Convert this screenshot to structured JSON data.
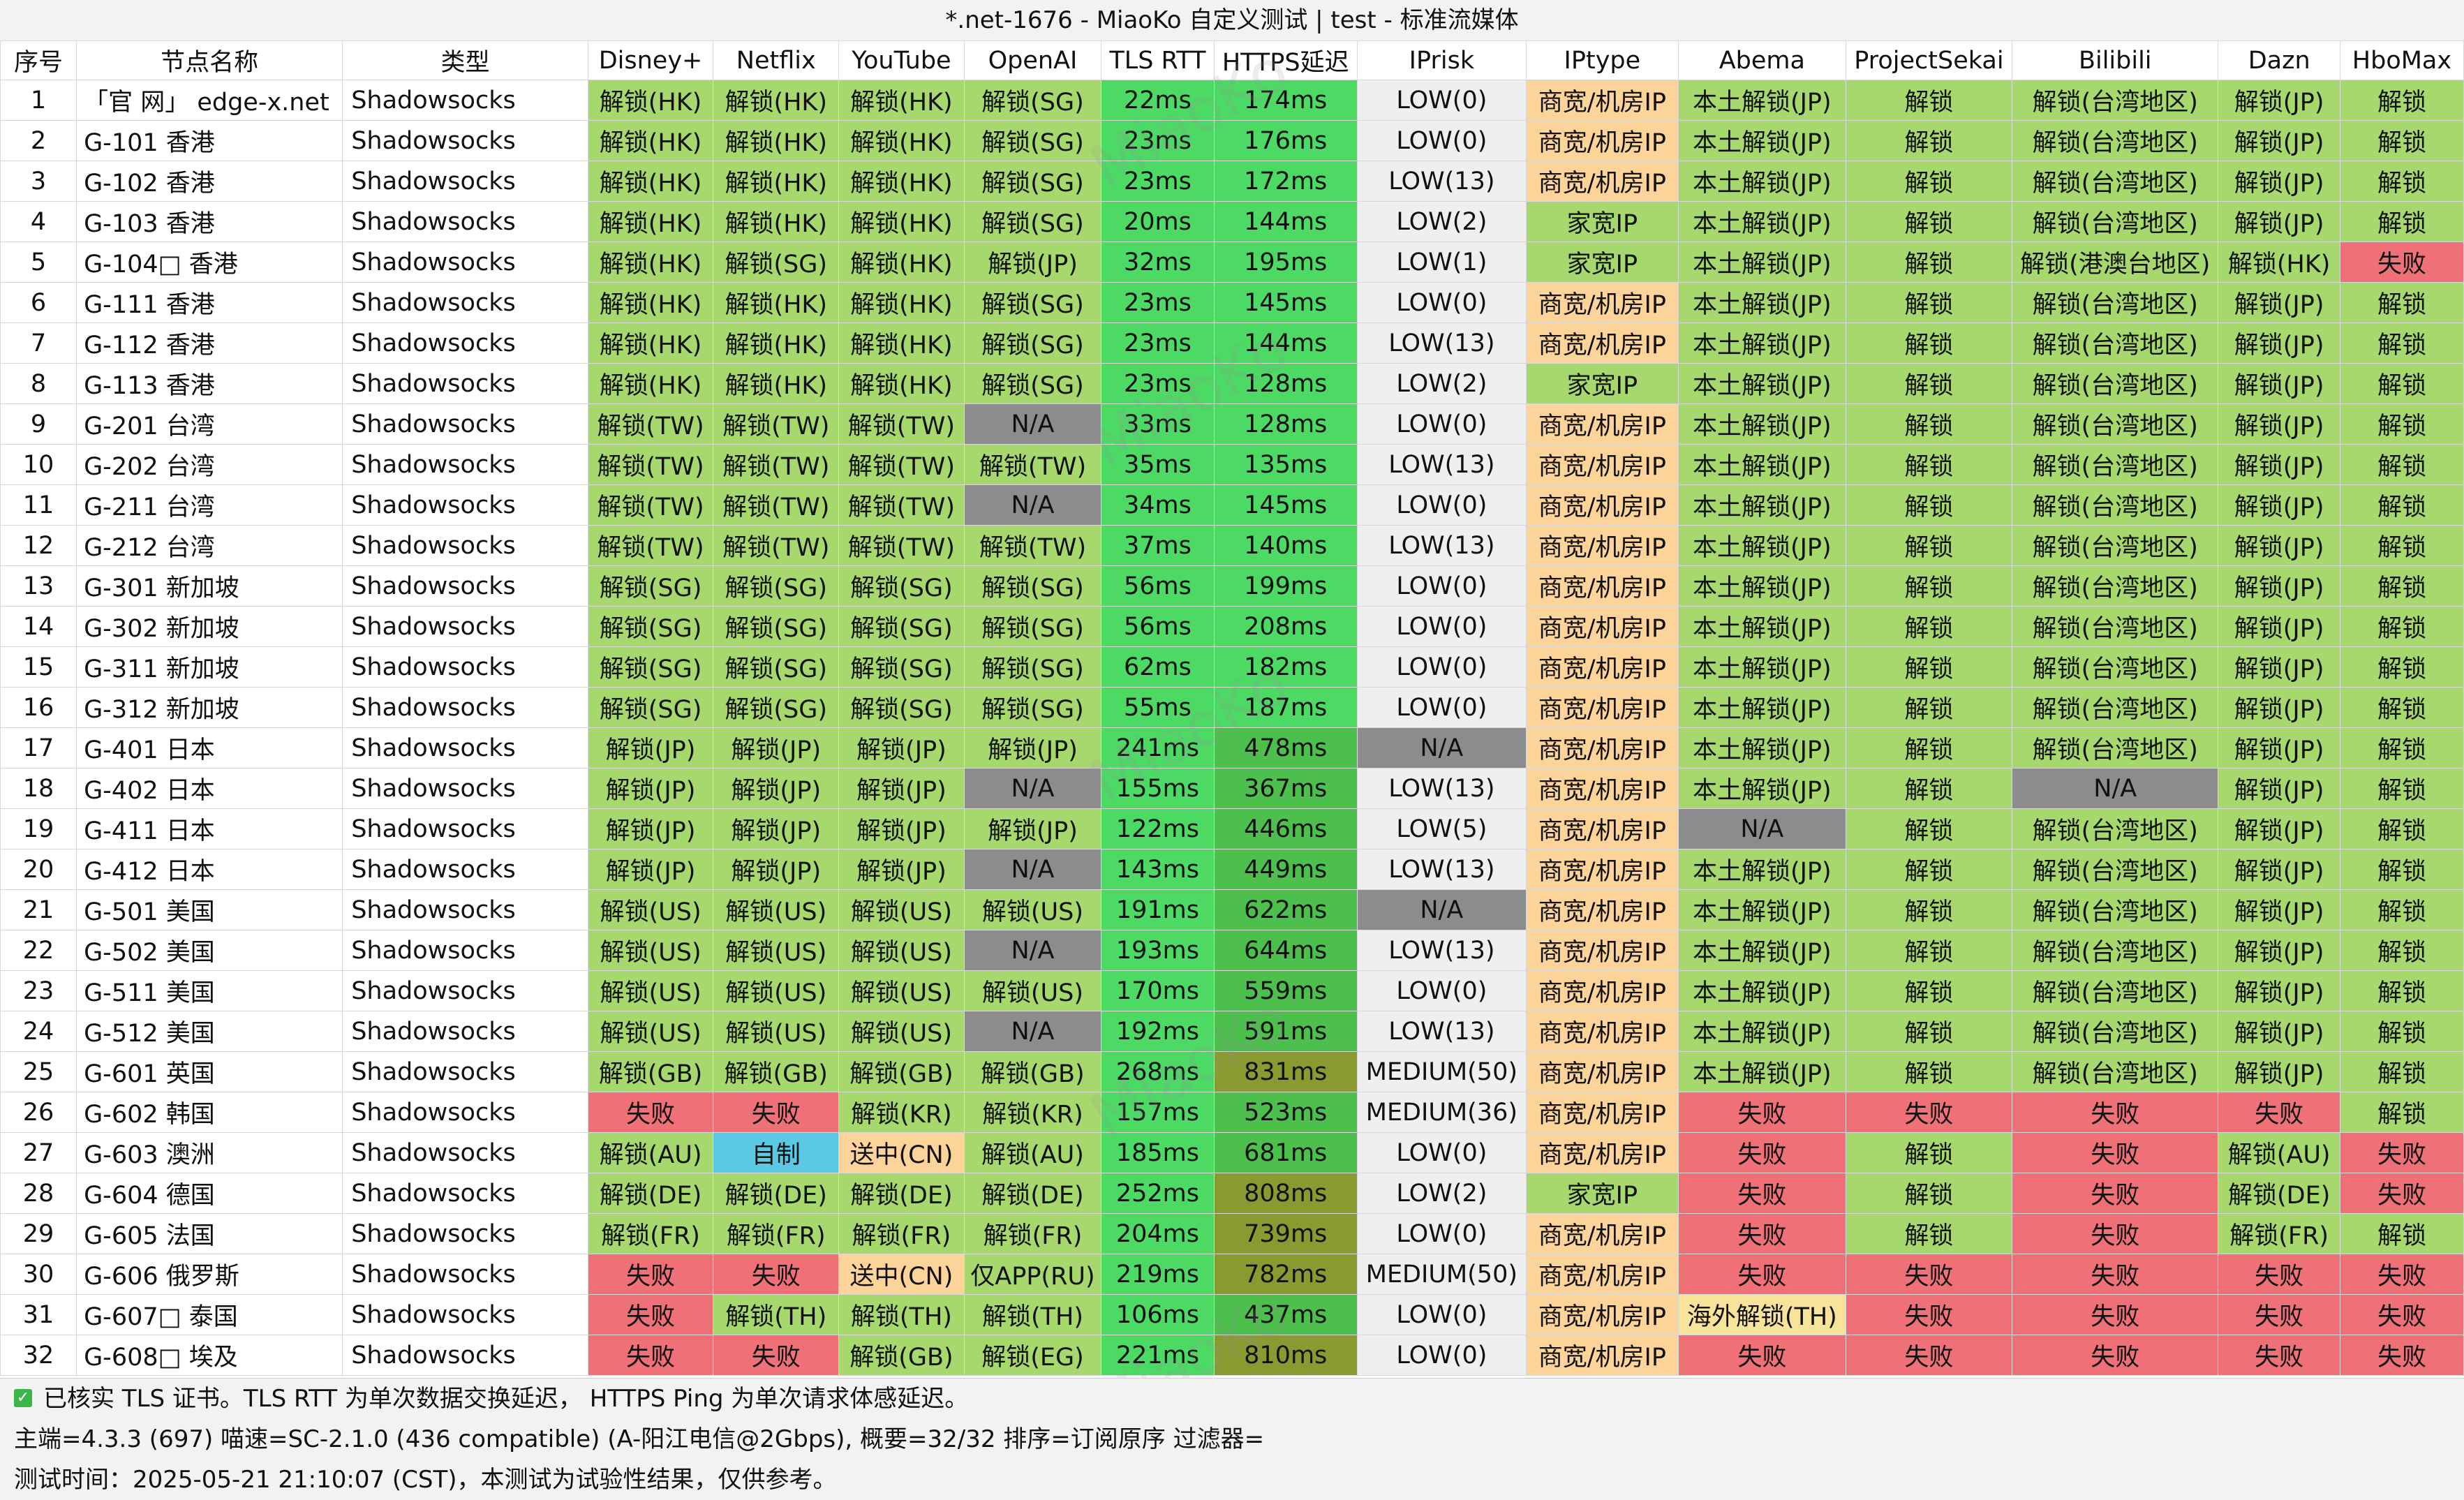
{
  "window_title": "*.net-1676 - MiaoKo 自定义测试 | test - 标准流媒体",
  "watermark": "MiaoKo",
  "colors": {
    "green": "#a6d86e",
    "bright_green": "#4cd964",
    "mid_green": "#4cbf4c",
    "olive": "#8a9a30",
    "gray_na": "#8c8c8c",
    "orange": "#fcd49a",
    "red": "#f07078",
    "cyan": "#5bc8e4",
    "lightgray": "#efefef",
    "white": "#ffffff",
    "light_yellow": "#f8e39a"
  },
  "columns": [
    "序号",
    "节点名称",
    "类型",
    "Disney+",
    "Netflix",
    "YouTube",
    "OpenAI",
    "TLS RTT",
    "HTTPS延迟",
    "IPrisk",
    "IPtype",
    "Abema",
    "ProjectSekai",
    "Bilibili",
    "Dazn",
    "HboMax"
  ],
  "rows": [
    {
      "idx": "1",
      "name": "「官 网」 edge-x.net",
      "type": "Shadowsocks",
      "disney": "解锁(HK)",
      "netflix": "解锁(HK)",
      "youtube": "解锁(HK)",
      "openai": "解锁(SG)",
      "tls": "22ms",
      "https": "174ms",
      "iprisk": "LOW(0)",
      "iptype": "商宽/机房IP",
      "abema": "本土解锁(JP)",
      "sekai": "解锁",
      "bilibili": "解锁(台湾地区)",
      "dazn": "解锁(JP)",
      "hbo": "解锁"
    },
    {
      "idx": "2",
      "name": "G-101 香港",
      "type": "Shadowsocks",
      "disney": "解锁(HK)",
      "netflix": "解锁(HK)",
      "youtube": "解锁(HK)",
      "openai": "解锁(SG)",
      "tls": "23ms",
      "https": "176ms",
      "iprisk": "LOW(0)",
      "iptype": "商宽/机房IP",
      "abema": "本土解锁(JP)",
      "sekai": "解锁",
      "bilibili": "解锁(台湾地区)",
      "dazn": "解锁(JP)",
      "hbo": "解锁"
    },
    {
      "idx": "3",
      "name": "G-102 香港",
      "type": "Shadowsocks",
      "disney": "解锁(HK)",
      "netflix": "解锁(HK)",
      "youtube": "解锁(HK)",
      "openai": "解锁(SG)",
      "tls": "23ms",
      "https": "172ms",
      "iprisk": "LOW(13)",
      "iptype": "商宽/机房IP",
      "abema": "本土解锁(JP)",
      "sekai": "解锁",
      "bilibili": "解锁(台湾地区)",
      "dazn": "解锁(JP)",
      "hbo": "解锁"
    },
    {
      "idx": "4",
      "name": "G-103 香港",
      "type": "Shadowsocks",
      "disney": "解锁(HK)",
      "netflix": "解锁(HK)",
      "youtube": "解锁(HK)",
      "openai": "解锁(SG)",
      "tls": "20ms",
      "https": "144ms",
      "iprisk": "LOW(2)",
      "iptype": "家宽IP",
      "abema": "本土解锁(JP)",
      "sekai": "解锁",
      "bilibili": "解锁(台湾地区)",
      "dazn": "解锁(JP)",
      "hbo": "解锁"
    },
    {
      "idx": "5",
      "name": "G-104□ 香港",
      "type": "Shadowsocks",
      "disney": "解锁(HK)",
      "netflix": "解锁(SG)",
      "youtube": "解锁(HK)",
      "openai": "解锁(JP)",
      "tls": "32ms",
      "https": "195ms",
      "iprisk": "LOW(1)",
      "iptype": "家宽IP",
      "abema": "本土解锁(JP)",
      "sekai": "解锁",
      "bilibili": "解锁(港澳台地区)",
      "dazn": "解锁(HK)",
      "hbo": "失败"
    },
    {
      "idx": "6",
      "name": "G-111 香港",
      "type": "Shadowsocks",
      "disney": "解锁(HK)",
      "netflix": "解锁(HK)",
      "youtube": "解锁(HK)",
      "openai": "解锁(SG)",
      "tls": "23ms",
      "https": "145ms",
      "iprisk": "LOW(0)",
      "iptype": "商宽/机房IP",
      "abema": "本土解锁(JP)",
      "sekai": "解锁",
      "bilibili": "解锁(台湾地区)",
      "dazn": "解锁(JP)",
      "hbo": "解锁"
    },
    {
      "idx": "7",
      "name": "G-112 香港",
      "type": "Shadowsocks",
      "disney": "解锁(HK)",
      "netflix": "解锁(HK)",
      "youtube": "解锁(HK)",
      "openai": "解锁(SG)",
      "tls": "23ms",
      "https": "144ms",
      "iprisk": "LOW(13)",
      "iptype": "商宽/机房IP",
      "abema": "本土解锁(JP)",
      "sekai": "解锁",
      "bilibili": "解锁(台湾地区)",
      "dazn": "解锁(JP)",
      "hbo": "解锁"
    },
    {
      "idx": "8",
      "name": "G-113 香港",
      "type": "Shadowsocks",
      "disney": "解锁(HK)",
      "netflix": "解锁(HK)",
      "youtube": "解锁(HK)",
      "openai": "解锁(SG)",
      "tls": "23ms",
      "https": "128ms",
      "iprisk": "LOW(2)",
      "iptype": "家宽IP",
      "abema": "本土解锁(JP)",
      "sekai": "解锁",
      "bilibili": "解锁(台湾地区)",
      "dazn": "解锁(JP)",
      "hbo": "解锁"
    },
    {
      "idx": "9",
      "name": "G-201 台湾",
      "type": "Shadowsocks",
      "disney": "解锁(TW)",
      "netflix": "解锁(TW)",
      "youtube": "解锁(TW)",
      "openai": "N/A",
      "tls": "33ms",
      "https": "128ms",
      "iprisk": "LOW(0)",
      "iptype": "商宽/机房IP",
      "abema": "本土解锁(JP)",
      "sekai": "解锁",
      "bilibili": "解锁(台湾地区)",
      "dazn": "解锁(JP)",
      "hbo": "解锁"
    },
    {
      "idx": "10",
      "name": "G-202 台湾",
      "type": "Shadowsocks",
      "disney": "解锁(TW)",
      "netflix": "解锁(TW)",
      "youtube": "解锁(TW)",
      "openai": "解锁(TW)",
      "tls": "35ms",
      "https": "135ms",
      "iprisk": "LOW(13)",
      "iptype": "商宽/机房IP",
      "abema": "本土解锁(JP)",
      "sekai": "解锁",
      "bilibili": "解锁(台湾地区)",
      "dazn": "解锁(JP)",
      "hbo": "解锁"
    },
    {
      "idx": "11",
      "name": "G-211 台湾",
      "type": "Shadowsocks",
      "disney": "解锁(TW)",
      "netflix": "解锁(TW)",
      "youtube": "解锁(TW)",
      "openai": "N/A",
      "tls": "34ms",
      "https": "145ms",
      "iprisk": "LOW(0)",
      "iptype": "商宽/机房IP",
      "abema": "本土解锁(JP)",
      "sekai": "解锁",
      "bilibili": "解锁(台湾地区)",
      "dazn": "解锁(JP)",
      "hbo": "解锁"
    },
    {
      "idx": "12",
      "name": "G-212 台湾",
      "type": "Shadowsocks",
      "disney": "解锁(TW)",
      "netflix": "解锁(TW)",
      "youtube": "解锁(TW)",
      "openai": "解锁(TW)",
      "tls": "37ms",
      "https": "140ms",
      "iprisk": "LOW(13)",
      "iptype": "商宽/机房IP",
      "abema": "本土解锁(JP)",
      "sekai": "解锁",
      "bilibili": "解锁(台湾地区)",
      "dazn": "解锁(JP)",
      "hbo": "解锁"
    },
    {
      "idx": "13",
      "name": "G-301 新加坡",
      "type": "Shadowsocks",
      "disney": "解锁(SG)",
      "netflix": "解锁(SG)",
      "youtube": "解锁(SG)",
      "openai": "解锁(SG)",
      "tls": "56ms",
      "https": "199ms",
      "iprisk": "LOW(0)",
      "iptype": "商宽/机房IP",
      "abema": "本土解锁(JP)",
      "sekai": "解锁",
      "bilibili": "解锁(台湾地区)",
      "dazn": "解锁(JP)",
      "hbo": "解锁"
    },
    {
      "idx": "14",
      "name": "G-302 新加坡",
      "type": "Shadowsocks",
      "disney": "解锁(SG)",
      "netflix": "解锁(SG)",
      "youtube": "解锁(SG)",
      "openai": "解锁(SG)",
      "tls": "56ms",
      "https": "208ms",
      "iprisk": "LOW(0)",
      "iptype": "商宽/机房IP",
      "abema": "本土解锁(JP)",
      "sekai": "解锁",
      "bilibili": "解锁(台湾地区)",
      "dazn": "解锁(JP)",
      "hbo": "解锁"
    },
    {
      "idx": "15",
      "name": "G-311 新加坡",
      "type": "Shadowsocks",
      "disney": "解锁(SG)",
      "netflix": "解锁(SG)",
      "youtube": "解锁(SG)",
      "openai": "解锁(SG)",
      "tls": "62ms",
      "https": "182ms",
      "iprisk": "LOW(0)",
      "iptype": "商宽/机房IP",
      "abema": "本土解锁(JP)",
      "sekai": "解锁",
      "bilibili": "解锁(台湾地区)",
      "dazn": "解锁(JP)",
      "hbo": "解锁"
    },
    {
      "idx": "16",
      "name": "G-312 新加坡",
      "type": "Shadowsocks",
      "disney": "解锁(SG)",
      "netflix": "解锁(SG)",
      "youtube": "解锁(SG)",
      "openai": "解锁(SG)",
      "tls": "55ms",
      "https": "187ms",
      "iprisk": "LOW(0)",
      "iptype": "商宽/机房IP",
      "abema": "本土解锁(JP)",
      "sekai": "解锁",
      "bilibili": "解锁(台湾地区)",
      "dazn": "解锁(JP)",
      "hbo": "解锁"
    },
    {
      "idx": "17",
      "name": "G-401 日本",
      "type": "Shadowsocks",
      "disney": "解锁(JP)",
      "netflix": "解锁(JP)",
      "youtube": "解锁(JP)",
      "openai": "解锁(JP)",
      "tls": "241ms",
      "https": "478ms",
      "iprisk": "N/A",
      "iptype": "商宽/机房IP",
      "abema": "本土解锁(JP)",
      "sekai": "解锁",
      "bilibili": "解锁(台湾地区)",
      "dazn": "解锁(JP)",
      "hbo": "解锁"
    },
    {
      "idx": "18",
      "name": "G-402 日本",
      "type": "Shadowsocks",
      "disney": "解锁(JP)",
      "netflix": "解锁(JP)",
      "youtube": "解锁(JP)",
      "openai": "N/A",
      "tls": "155ms",
      "https": "367ms",
      "iprisk": "LOW(13)",
      "iptype": "商宽/机房IP",
      "abema": "本土解锁(JP)",
      "sekai": "解锁",
      "bilibili": "N/A",
      "dazn": "解锁(JP)",
      "hbo": "解锁"
    },
    {
      "idx": "19",
      "name": "G-411 日本",
      "type": "Shadowsocks",
      "disney": "解锁(JP)",
      "netflix": "解锁(JP)",
      "youtube": "解锁(JP)",
      "openai": "解锁(JP)",
      "tls": "122ms",
      "https": "446ms",
      "iprisk": "LOW(5)",
      "iptype": "商宽/机房IP",
      "abema": "N/A",
      "sekai": "解锁",
      "bilibili": "解锁(台湾地区)",
      "dazn": "解锁(JP)",
      "hbo": "解锁"
    },
    {
      "idx": "20",
      "name": "G-412 日本",
      "type": "Shadowsocks",
      "disney": "解锁(JP)",
      "netflix": "解锁(JP)",
      "youtube": "解锁(JP)",
      "openai": "N/A",
      "tls": "143ms",
      "https": "449ms",
      "iprisk": "LOW(13)",
      "iptype": "商宽/机房IP",
      "abema": "本土解锁(JP)",
      "sekai": "解锁",
      "bilibili": "解锁(台湾地区)",
      "dazn": "解锁(JP)",
      "hbo": "解锁"
    },
    {
      "idx": "21",
      "name": "G-501 美国",
      "type": "Shadowsocks",
      "disney": "解锁(US)",
      "netflix": "解锁(US)",
      "youtube": "解锁(US)",
      "openai": "解锁(US)",
      "tls": "191ms",
      "https": "622ms",
      "iprisk": "N/A",
      "iptype": "商宽/机房IP",
      "abema": "本土解锁(JP)",
      "sekai": "解锁",
      "bilibili": "解锁(台湾地区)",
      "dazn": "解锁(JP)",
      "hbo": "解锁"
    },
    {
      "idx": "22",
      "name": "G-502 美国",
      "type": "Shadowsocks",
      "disney": "解锁(US)",
      "netflix": "解锁(US)",
      "youtube": "解锁(US)",
      "openai": "N/A",
      "tls": "193ms",
      "https": "644ms",
      "iprisk": "LOW(13)",
      "iptype": "商宽/机房IP",
      "abema": "本土解锁(JP)",
      "sekai": "解锁",
      "bilibili": "解锁(台湾地区)",
      "dazn": "解锁(JP)",
      "hbo": "解锁"
    },
    {
      "idx": "23",
      "name": "G-511 美国",
      "type": "Shadowsocks",
      "disney": "解锁(US)",
      "netflix": "解锁(US)",
      "youtube": "解锁(US)",
      "openai": "解锁(US)",
      "tls": "170ms",
      "https": "559ms",
      "iprisk": "LOW(0)",
      "iptype": "商宽/机房IP",
      "abema": "本土解锁(JP)",
      "sekai": "解锁",
      "bilibili": "解锁(台湾地区)",
      "dazn": "解锁(JP)",
      "hbo": "解锁"
    },
    {
      "idx": "24",
      "name": "G-512 美国",
      "type": "Shadowsocks",
      "disney": "解锁(US)",
      "netflix": "解锁(US)",
      "youtube": "解锁(US)",
      "openai": "N/A",
      "tls": "192ms",
      "https": "591ms",
      "iprisk": "LOW(13)",
      "iptype": "商宽/机房IP",
      "abema": "本土解锁(JP)",
      "sekai": "解锁",
      "bilibili": "解锁(台湾地区)",
      "dazn": "解锁(JP)",
      "hbo": "解锁"
    },
    {
      "idx": "25",
      "name": "G-601 英国",
      "type": "Shadowsocks",
      "disney": "解锁(GB)",
      "netflix": "解锁(GB)",
      "youtube": "解锁(GB)",
      "openai": "解锁(GB)",
      "tls": "268ms",
      "https": "831ms",
      "iprisk": "MEDIUM(50)",
      "iptype": "商宽/机房IP",
      "abema": "本土解锁(JP)",
      "sekai": "解锁",
      "bilibili": "解锁(台湾地区)",
      "dazn": "解锁(JP)",
      "hbo": "解锁"
    },
    {
      "idx": "26",
      "name": "G-602 韩国",
      "type": "Shadowsocks",
      "disney": "失败",
      "netflix": "失败",
      "youtube": "解锁(KR)",
      "openai": "解锁(KR)",
      "tls": "157ms",
      "https": "523ms",
      "iprisk": "MEDIUM(36)",
      "iptype": "商宽/机房IP",
      "abema": "失败",
      "sekai": "失败",
      "bilibili": "失败",
      "dazn": "失败",
      "hbo": "解锁"
    },
    {
      "idx": "27",
      "name": "G-603 澳洲",
      "type": "Shadowsocks",
      "disney": "解锁(AU)",
      "netflix": "自制",
      "youtube": "送中(CN)",
      "openai": "解锁(AU)",
      "tls": "185ms",
      "https": "681ms",
      "iprisk": "LOW(0)",
      "iptype": "商宽/机房IP",
      "abema": "失败",
      "sekai": "解锁",
      "bilibili": "失败",
      "dazn": "解锁(AU)",
      "hbo": "失败"
    },
    {
      "idx": "28",
      "name": "G-604 德国",
      "type": "Shadowsocks",
      "disney": "解锁(DE)",
      "netflix": "解锁(DE)",
      "youtube": "解锁(DE)",
      "openai": "解锁(DE)",
      "tls": "252ms",
      "https": "808ms",
      "iprisk": "LOW(2)",
      "iptype": "家宽IP",
      "abema": "失败",
      "sekai": "解锁",
      "bilibili": "失败",
      "dazn": "解锁(DE)",
      "hbo": "失败"
    },
    {
      "idx": "29",
      "name": "G-605 法国",
      "type": "Shadowsocks",
      "disney": "解锁(FR)",
      "netflix": "解锁(FR)",
      "youtube": "解锁(FR)",
      "openai": "解锁(FR)",
      "tls": "204ms",
      "https": "739ms",
      "iprisk": "LOW(0)",
      "iptype": "商宽/机房IP",
      "abema": "失败",
      "sekai": "解锁",
      "bilibili": "失败",
      "dazn": "解锁(FR)",
      "hbo": "解锁"
    },
    {
      "idx": "30",
      "name": "G-606 俄罗斯",
      "type": "Shadowsocks",
      "disney": "失败",
      "netflix": "失败",
      "youtube": "送中(CN)",
      "openai": "仅APP(RU)",
      "tls": "219ms",
      "https": "782ms",
      "iprisk": "MEDIUM(50)",
      "iptype": "商宽/机房IP",
      "abema": "失败",
      "sekai": "失败",
      "bilibili": "失败",
      "dazn": "失败",
      "hbo": "失败"
    },
    {
      "idx": "31",
      "name": "G-607□ 泰国",
      "type": "Shadowsocks",
      "disney": "失败",
      "netflix": "解锁(TH)",
      "youtube": "解锁(TH)",
      "openai": "解锁(TH)",
      "tls": "106ms",
      "https": "437ms",
      "iprisk": "LOW(0)",
      "iptype": "商宽/机房IP",
      "abema": "海外解锁(TH)",
      "sekai": "失败",
      "bilibili": "失败",
      "dazn": "失败",
      "hbo": "失败"
    },
    {
      "idx": "32",
      "name": "G-608□ 埃及",
      "type": "Shadowsocks",
      "disney": "失败",
      "netflix": "失败",
      "youtube": "解锁(GB)",
      "openai": "解锁(EG)",
      "tls": "221ms",
      "https": "810ms",
      "iprisk": "LOW(0)",
      "iptype": "商宽/机房IP",
      "abema": "失败",
      "sekai": "失败",
      "bilibili": "失败",
      "dazn": "失败",
      "hbo": "失败"
    }
  ],
  "footer": {
    "line1": "已核实 TLS 证书。TLS RTT 为单次数据交换延迟， HTTPS Ping 为单次请求体感延迟。",
    "line2": "主端=4.3.3 (697) 喵速=SC-2.1.0 (436 compatible) (A-阳江电信@2Gbps), 概要=32/32 排序=订阅原序 过滤器=",
    "line3": "测试时间：2025-05-21 21:10:07 (CST)，本测试为试验性结果，仅供参考。",
    "check_icon": "check-icon"
  }
}
